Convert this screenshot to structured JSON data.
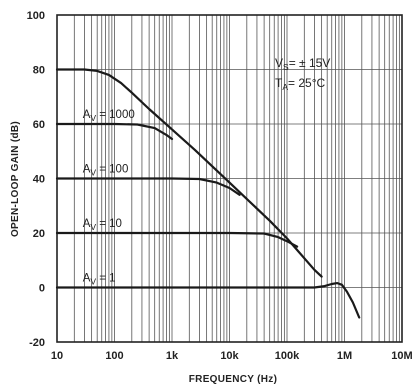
{
  "chart_data": {
    "type": "line",
    "title": "",
    "xlabel": "FREQUENCY (Hz)",
    "ylabel": "OPEN-LOOP GAIN (dB)",
    "xscale": "log",
    "xlim": [
      10,
      10000000
    ],
    "ylim": [
      -20,
      100
    ],
    "xticks": [
      10,
      100,
      1000,
      10000,
      100000,
      1000000,
      10000000
    ],
    "xtick_labels": [
      "10",
      "100",
      "1k",
      "10k",
      "100k",
      "1M",
      "10M"
    ],
    "yticks": [
      -20,
      0,
      20,
      40,
      60,
      80,
      100
    ],
    "ytick_labels": [
      "-20",
      "0",
      "20",
      "40",
      "60",
      "80",
      "100"
    ],
    "grid": true,
    "conditions": {
      "vs": "= ± 15V",
      "ta": "= 25°C"
    },
    "series": [
      {
        "label": "",
        "points": [
          [
            10,
            80
          ],
          [
            30,
            80
          ],
          [
            50,
            79.5
          ],
          [
            80,
            78
          ],
          [
            130,
            75
          ],
          [
            200,
            71.5
          ],
          [
            400,
            65.5
          ],
          [
            1000,
            58
          ],
          [
            2500,
            50.5
          ],
          [
            10000,
            38.5
          ],
          [
            50000,
            24.5
          ],
          [
            100000,
            18
          ],
          [
            300000,
            6.5
          ],
          [
            400000,
            4
          ]
        ]
      },
      {
        "label": "AV = 1000",
        "points": [
          [
            10,
            60
          ],
          [
            100,
            60
          ],
          [
            250,
            59.8
          ],
          [
            500,
            58.5
          ],
          [
            800,
            56
          ],
          [
            1000,
            54.5
          ]
        ]
      },
      {
        "label": "AV = 100",
        "points": [
          [
            10,
            40
          ],
          [
            1000,
            40
          ],
          [
            3000,
            39.8
          ],
          [
            6000,
            38.5
          ],
          [
            10000,
            36.5
          ],
          [
            15000,
            34
          ]
        ]
      },
      {
        "label": "AV = 10",
        "points": [
          [
            10,
            20
          ],
          [
            10000,
            20
          ],
          [
            40000,
            19.8
          ],
          [
            70000,
            18.5
          ],
          [
            100000,
            17
          ],
          [
            150000,
            15
          ]
        ]
      },
      {
        "label": "AV = 1",
        "points": [
          [
            10,
            0
          ],
          [
            300000,
            0
          ],
          [
            450000,
            0.5
          ],
          [
            600000,
            1.3
          ],
          [
            750000,
            1.6
          ],
          [
            900000,
            1
          ],
          [
            1100000,
            -1.5
          ],
          [
            1400000,
            -5.5
          ],
          [
            1800000,
            -11
          ]
        ]
      }
    ]
  }
}
